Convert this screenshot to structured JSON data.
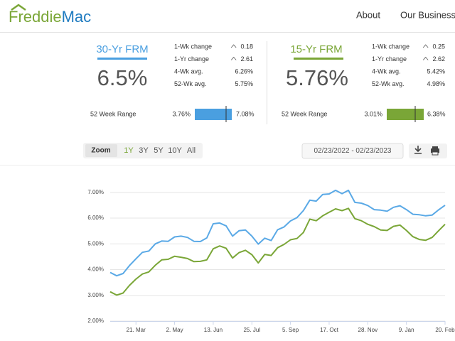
{
  "header": {
    "logo": {
      "first": "Freddie",
      "second": "Mac"
    },
    "nav": [
      "About",
      "Our Business"
    ]
  },
  "cards": [
    {
      "title": "30-Yr FRM",
      "rate": "6.5%",
      "stats": [
        {
          "label": "1-Wk change",
          "value": "0.18"
        },
        {
          "label": "1-Yr change",
          "value": "2.61"
        },
        {
          "label": "4-Wk avg.",
          "value": "6.26%"
        },
        {
          "label": "52-Wk avg.",
          "value": "5.75%"
        }
      ],
      "range": {
        "label": "52 Week Range",
        "low": "3.76%",
        "high": "7.08%"
      }
    },
    {
      "title": "15-Yr FRM",
      "rate": "5.76%",
      "stats": [
        {
          "label": "1-Wk change",
          "value": "0.25"
        },
        {
          "label": "1-Yr change",
          "value": "2.62"
        },
        {
          "label": "4-Wk avg.",
          "value": "5.42%"
        },
        {
          "label": "52-Wk avg.",
          "value": "4.98%"
        }
      ],
      "range": {
        "label": "52 Week Range",
        "low": "3.01%",
        "high": "6.38%"
      }
    }
  ],
  "controls": {
    "zoom": "Zoom",
    "ranges": [
      "1Y",
      "3Y",
      "5Y",
      "10Y",
      "All"
    ],
    "date_range": "02/23/2022 - 02/23/2023"
  },
  "chart_data": {
    "type": "line",
    "categories": [
      null,
      null,
      null,
      null,
      "21. Mar",
      null,
      null,
      null,
      null,
      null,
      "2. May",
      null,
      null,
      null,
      null,
      null,
      "13. Jun",
      null,
      null,
      null,
      null,
      null,
      "25. Jul",
      null,
      null,
      null,
      null,
      null,
      "5. Sep",
      null,
      null,
      null,
      null,
      null,
      "17. Oct",
      null,
      null,
      null,
      null,
      null,
      "28. Nov",
      null,
      null,
      null,
      null,
      null,
      "9. Jan",
      null,
      null,
      null,
      null,
      null,
      "20. Feb"
    ],
    "series": [
      {
        "color": "#5aa9e6",
        "values": [
          3.89,
          3.76,
          3.85,
          4.16,
          4.42,
          4.67,
          4.72,
          5.0,
          5.11,
          5.1,
          5.27,
          5.3,
          5.25,
          5.1,
          5.09,
          5.23,
          5.78,
          5.81,
          5.7,
          5.3,
          5.51,
          5.54,
          5.3,
          4.99,
          5.22,
          5.13,
          5.55,
          5.66,
          5.89,
          6.02,
          6.29,
          6.7,
          6.66,
          6.92,
          6.94,
          7.08,
          6.95,
          7.08,
          6.61,
          6.58,
          6.49,
          6.33,
          6.31,
          6.27,
          6.42,
          6.48,
          6.33,
          6.15,
          6.13,
          6.09,
          6.12,
          6.32,
          6.5
        ]
      },
      {
        "color": "#7aa637",
        "values": [
          3.14,
          3.01,
          3.09,
          3.39,
          3.63,
          3.83,
          3.91,
          4.17,
          4.38,
          4.4,
          4.52,
          4.48,
          4.43,
          4.31,
          4.32,
          4.38,
          4.81,
          4.92,
          4.83,
          4.45,
          4.66,
          4.75,
          4.58,
          4.26,
          4.59,
          4.55,
          4.85,
          4.98,
          5.16,
          5.21,
          5.44,
          5.96,
          5.9,
          6.09,
          6.23,
          6.36,
          6.29,
          6.38,
          5.98,
          5.9,
          5.76,
          5.67,
          5.54,
          5.52,
          5.68,
          5.73,
          5.52,
          5.28,
          5.17,
          5.14,
          5.25,
          5.51,
          5.76
        ]
      }
    ],
    "ylim": [
      2,
      7.85
    ],
    "yticks": [
      {
        "value": 2,
        "label": "2.00%"
      },
      {
        "value": 3,
        "label": "3.00%"
      },
      {
        "value": 4,
        "label": "4.00%"
      },
      {
        "value": 5,
        "label": "5.00%"
      },
      {
        "value": 6,
        "label": "6.00%"
      },
      {
        "value": 7,
        "label": "7.00%"
      }
    ],
    "grid": true
  }
}
